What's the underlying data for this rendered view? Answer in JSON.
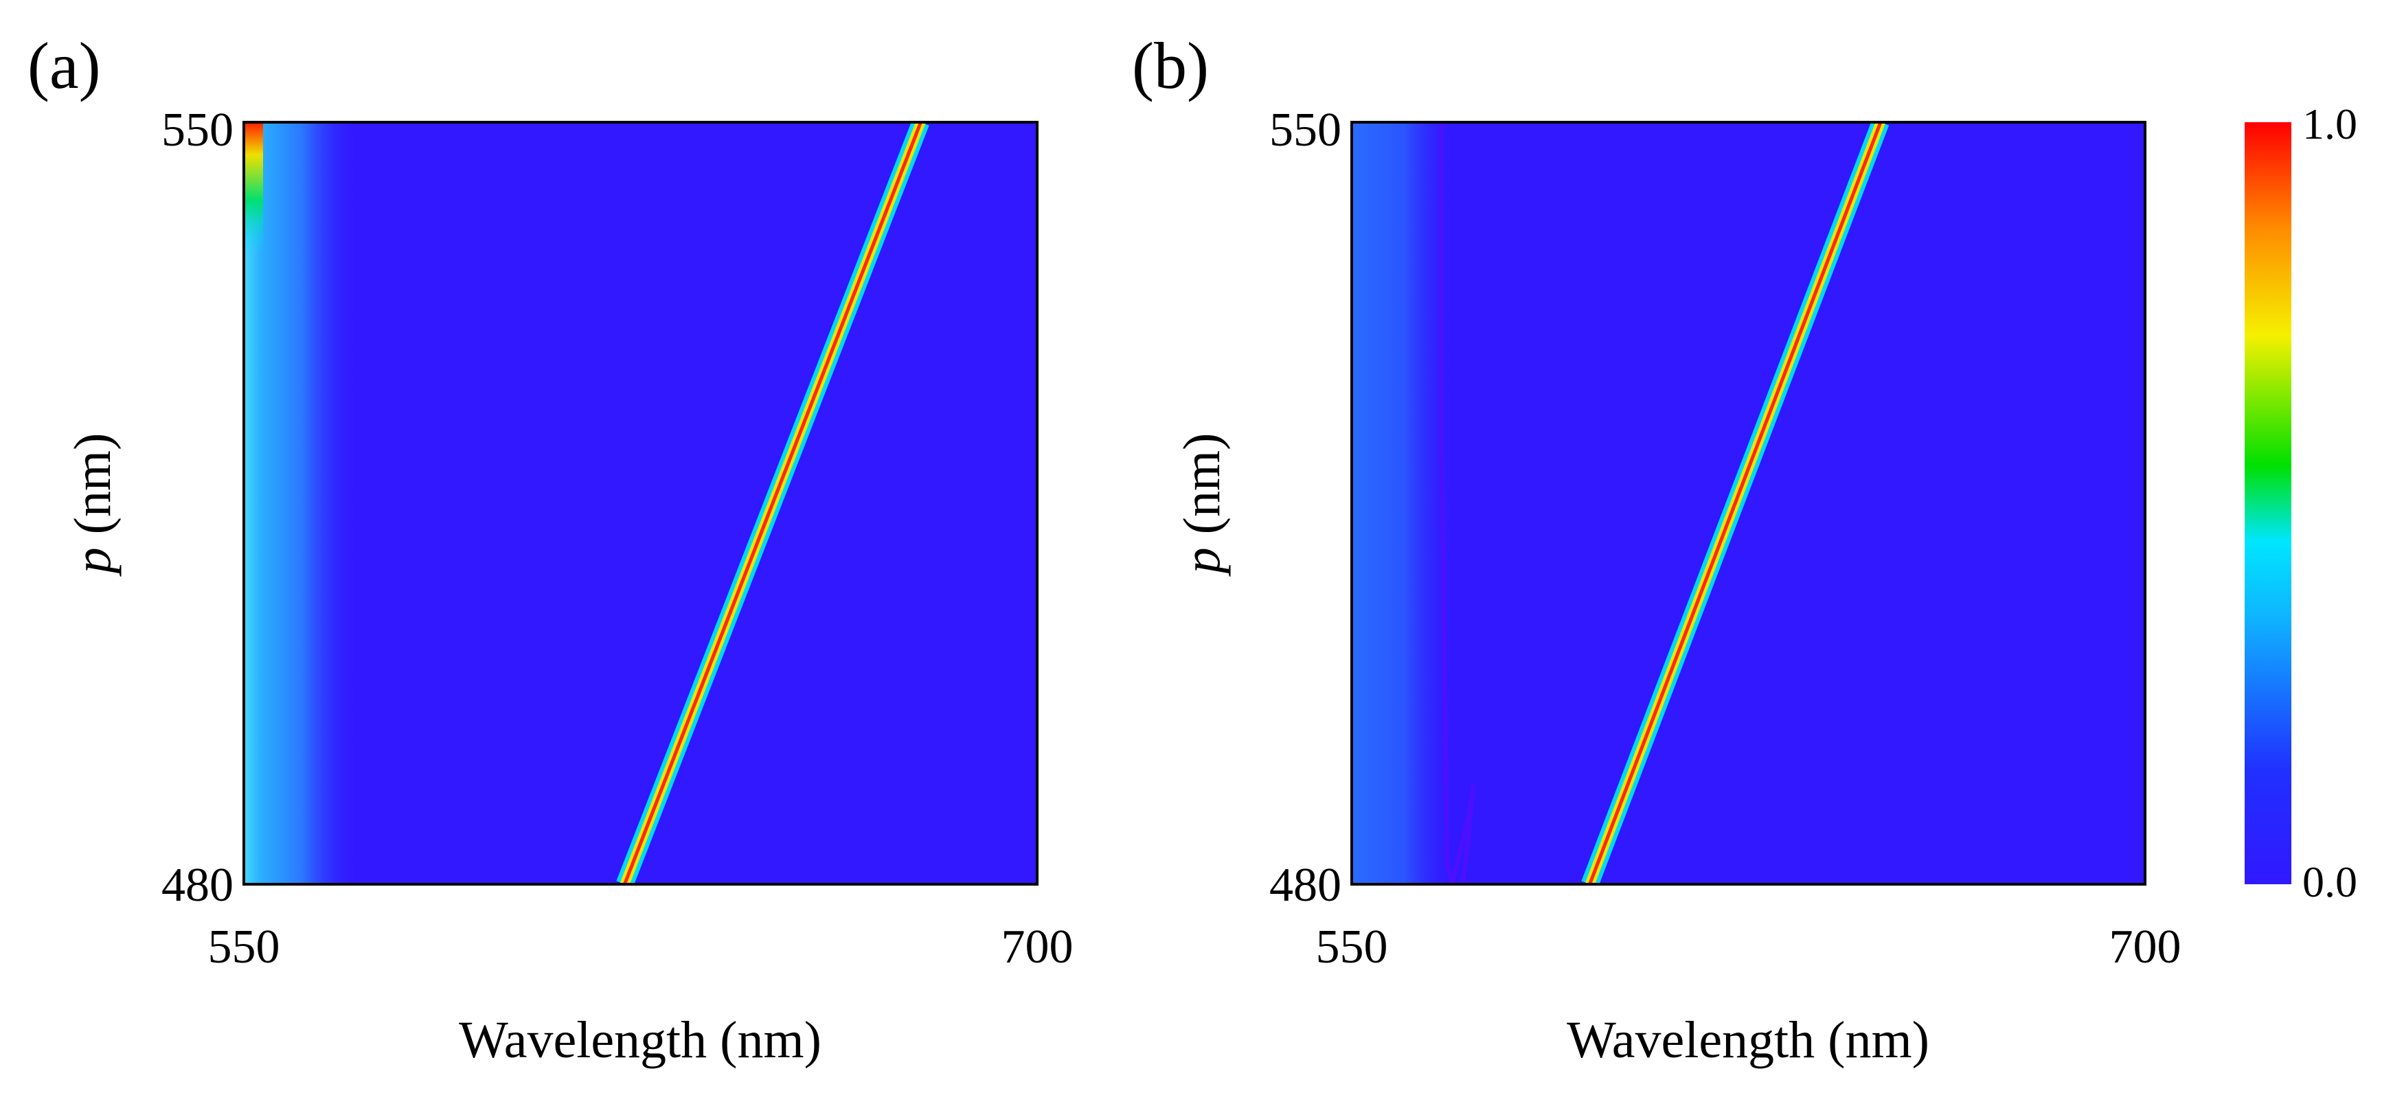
{
  "chart_data": [
    {
      "type": "heatmap",
      "panel_label": "(a)",
      "xlabel": "Wavelength (nm)",
      "ylabel_var": "p",
      "ylabel_unit": " (nm)",
      "xlim": [
        550,
        700
      ],
      "ylim": [
        480,
        550
      ],
      "xticks": [
        "550",
        "700"
      ],
      "yticks": [
        "480",
        "550"
      ],
      "background_value": 0.12,
      "left_edge_glow": {
        "peak_value": 0.4,
        "extent_nm": 22
      },
      "resonance_line": {
        "wavelength_at_p480": 622,
        "wavelength_at_p550": 678,
        "peak_value": 1.0
      },
      "features": []
    },
    {
      "type": "heatmap",
      "panel_label": "(b)",
      "xlabel": "Wavelength (nm)",
      "ylabel_var": "p",
      "ylabel_unit": " (nm)",
      "xlim": [
        550,
        700
      ],
      "ylim": [
        480,
        550
      ],
      "xticks": [
        "550",
        "700"
      ],
      "yticks": [
        "480",
        "550"
      ],
      "background_value": 0.12,
      "left_edge_glow": {
        "peak_value": 0.22,
        "extent_nm": 20
      },
      "resonance_line": {
        "wavelength_at_p480": 595,
        "wavelength_at_p550": 650,
        "peak_value": 1.0
      },
      "features": [
        {
          "kind": "faint-curve",
          "points": [
            [
              567,
              550
            ],
            [
              567,
              520
            ],
            [
              568,
              482
            ],
            [
              569,
              480
            ],
            [
              572,
              486
            ],
            [
              573,
              489
            ],
            [
              572,
              484
            ],
            [
              571,
              480
            ]
          ]
        }
      ]
    }
  ],
  "colorbar": {
    "min_label": "0.0",
    "max_label": "1.0",
    "range": [
      0,
      1
    ],
    "colormap": "rainbow",
    "stops": [
      "#3118ff",
      "#1f3cff",
      "#00e6ff",
      "#00e000",
      "#f5f000",
      "#ff8c00",
      "#ff0000"
    ]
  }
}
